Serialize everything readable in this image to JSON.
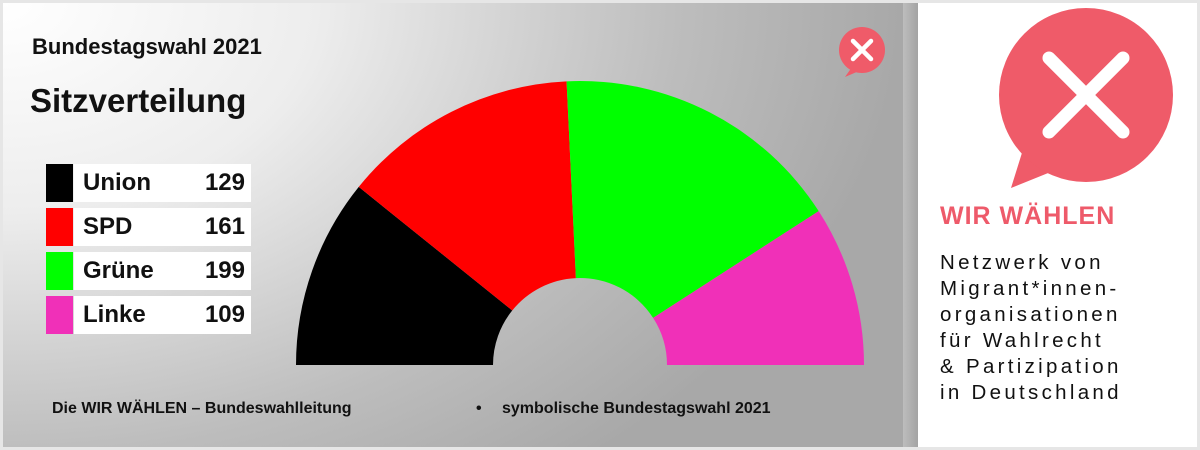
{
  "header": {
    "title": "Bundestagswahl 2021",
    "subtitle": "Sitzverteilung"
  },
  "chart_data": {
    "type": "pie",
    "shape": "semicircle-donut",
    "categories": [
      "Union",
      "SPD",
      "Grüne",
      "Linke"
    ],
    "values": [
      129,
      161,
      199,
      109
    ],
    "colors": [
      "#000000",
      "#ff0000",
      "#00ff00",
      "#f030b8"
    ],
    "legend": "left"
  },
  "footer": {
    "left": "Die WIR WÄHLEN – Bundeswahlleitung",
    "bullet": "•",
    "right": "symbolische Bundestagswahl 2021"
  },
  "sidebar": {
    "brand": "WIR WÄHLEN",
    "tagline": [
      "Netzwerk von",
      "Migrant*innen-",
      "organisationen",
      "für Wahlrecht",
      "& Partizipation",
      "in Deutschland"
    ],
    "logo_color": "#ef5b69",
    "logo_icon": "speech-bubble-x-icon"
  }
}
